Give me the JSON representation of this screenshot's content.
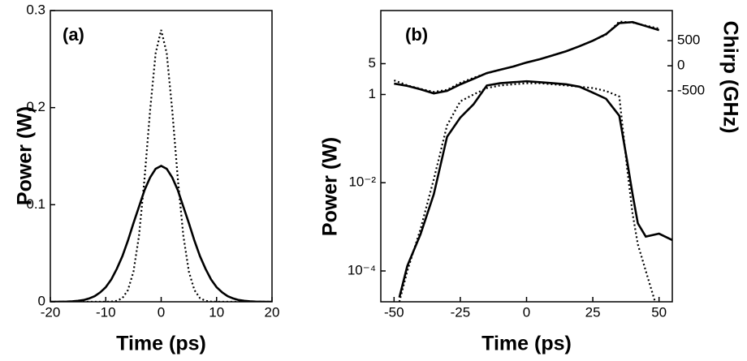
{
  "chart_data": [
    {
      "type": "line",
      "title": "(a)",
      "xlabel": "Time (ps)",
      "ylabel": "Power (W)",
      "x": [
        -20,
        -19,
        -18,
        -17,
        -16,
        -15,
        -14,
        -13,
        -12,
        -11,
        -10,
        -9,
        -8,
        -7,
        -6,
        -5,
        -4,
        -3,
        -2,
        -1,
        0,
        1,
        2,
        3,
        4,
        5,
        6,
        7,
        8,
        9,
        10,
        11,
        12,
        13,
        14,
        15,
        16,
        17,
        18,
        19,
        20
      ],
      "series": [
        {
          "color": "#000000",
          "dash": "solid",
          "values": [
            0,
            0,
            0.0001,
            0.0002,
            0.0005,
            0.001,
            0.0018,
            0.0034,
            0.0058,
            0.0097,
            0.015,
            0.023,
            0.034,
            0.047,
            0.063,
            0.081,
            0.098,
            0.115,
            0.128,
            0.137,
            0.14,
            0.137,
            0.128,
            0.115,
            0.098,
            0.081,
            0.063,
            0.047,
            0.034,
            0.023,
            0.015,
            0.0097,
            0.0058,
            0.0034,
            0.0018,
            0.001,
            0.0005,
            0.0002,
            0.0001,
            0,
            0
          ]
        },
        {
          "color": "#000000",
          "dash": "dotted",
          "values": [
            0,
            0,
            0,
            0,
            0,
            0,
            0,
            0,
            0,
            0,
            0,
            0.0002,
            0.001,
            0.0037,
            0.012,
            0.031,
            0.068,
            0.127,
            0.197,
            0.256,
            0.28,
            0.256,
            0.197,
            0.127,
            0.068,
            0.031,
            0.012,
            0.0037,
            0.001,
            0.0002,
            0,
            0,
            0,
            0,
            0,
            0,
            0,
            0,
            0,
            0,
            0
          ]
        }
      ],
      "xlim": [
        -20,
        20
      ],
      "xticks": [
        -20,
        -10,
        0,
        10,
        20
      ],
      "ylim": [
        0,
        0.3
      ],
      "yticks": [
        0,
        0.1,
        0.2,
        0.3
      ]
    },
    {
      "type": "line",
      "title": "(b)",
      "xlabel": "Time (ps)",
      "ylabel": "Power (W)",
      "y2label": "Chirp (GHz)",
      "ylog": true,
      "x": [
        -48,
        -45,
        -40,
        -35,
        -30,
        -25,
        -20,
        -15,
        -10,
        -5,
        0,
        5,
        10,
        15,
        20,
        25,
        30,
        35,
        38,
        40,
        42,
        45,
        50,
        55
      ],
      "series": [
        {
          "color": "#000000",
          "dash": "solid",
          "values": [
            2.5e-05,
            0.00013,
            0.00068,
            0.0055,
            0.11,
            0.3,
            0.6,
            1.6,
            1.8,
            1.9,
            2.0,
            1.9,
            1.8,
            1.7,
            1.5,
            1.1,
            0.8,
            0.33,
            0.03,
            0.0055,
            0.0012,
            0.0006,
            0.0007,
            0.0005
          ]
        },
        {
          "color": "#000000",
          "dash": "dotted",
          "values": [
            2e-05,
            0.0001,
            0.0009,
            0.012,
            0.2,
            0.7,
            1.0,
            1.4,
            1.6,
            1.7,
            1.8,
            1.8,
            1.7,
            1.6,
            1.5,
            1.4,
            1.2,
            0.9,
            0.02,
            0.002,
            0.0004,
            0.0001,
            1e-05,
            null
          ]
        },
        {
          "color": "#000000",
          "dash": "solid",
          "axis": "y2",
          "x": [
            -50,
            -45,
            -40,
            -35,
            -30,
            -25,
            -20,
            -15,
            -10,
            -5,
            0,
            5,
            10,
            15,
            20,
            25,
            30,
            35,
            40,
            45,
            50
          ],
          "values": [
            -355,
            -400,
            -470,
            -550,
            -500,
            -370,
            -260,
            -145,
            -80,
            -15,
            65,
            130,
            210,
            290,
            390,
            500,
            630,
            850,
            870,
            790,
            710
          ]
        },
        {
          "color": "#000000",
          "dash": "dotted",
          "axis": "y2",
          "x": [
            -50,
            -45,
            -40,
            -35,
            -30,
            -25,
            -20,
            -15,
            -10,
            -5,
            0,
            5,
            10,
            15,
            20,
            25,
            30,
            35,
            40,
            45,
            50
          ],
          "values": [
            -290,
            -390,
            -460,
            -520,
            -480,
            -340,
            -240,
            -150,
            -80,
            -15,
            65,
            130,
            210,
            290,
            390,
            500,
            620,
            880,
            860,
            800,
            740
          ]
        }
      ],
      "xlim": [
        -55,
        55
      ],
      "xticks": [
        -50,
        -25,
        0,
        25,
        50
      ],
      "ylim": [
        2e-05,
        80
      ],
      "yticks": [
        {
          "value": 0.0001,
          "label": "10⁻⁴"
        },
        {
          "value": 0.01,
          "label": "10⁻²"
        },
        1,
        5
      ],
      "y2lim": [
        -4700,
        1100
      ],
      "y2ticks": [
        -500,
        0,
        500
      ]
    }
  ]
}
